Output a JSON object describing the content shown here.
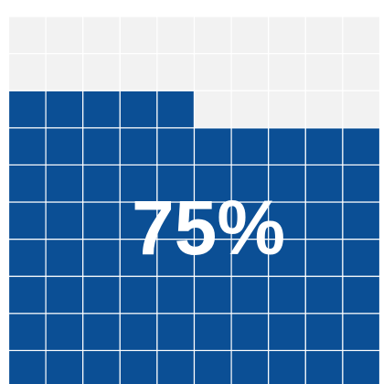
{
  "chart_data": {
    "type": "waffle",
    "values": [
      75
    ],
    "value_labels": [
      "75%"
    ],
    "color": "#0b4f95",
    "empty_color": "#f2f2f2",
    "rows": 10,
    "columns": 10
  }
}
